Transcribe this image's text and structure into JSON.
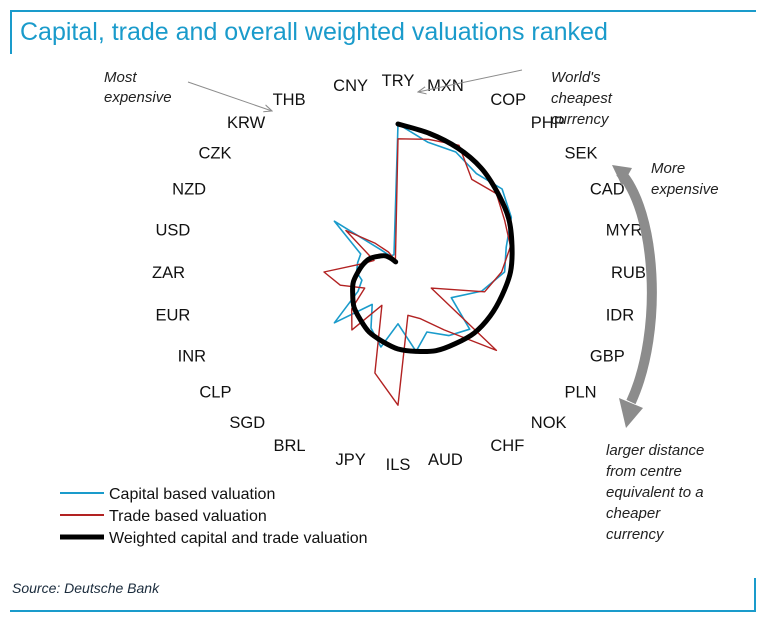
{
  "title": "Capital, trade and overall weighted valuations ranked",
  "source": "Source: Deutsche Bank",
  "colors": {
    "title": "#1a9bcb",
    "capital": "#1a9bcb",
    "trade": "#b22222",
    "weighted": "#000000",
    "arrow": "#8c8c8c"
  },
  "annotations": {
    "most_expensive": [
      "Most",
      "expensive"
    ],
    "worlds_cheapest": [
      "World's",
      "cheapest",
      "currency"
    ],
    "more_expensive": [
      "More",
      "expensive"
    ],
    "distance_note": [
      "larger distance",
      "from centre",
      "equivalent to a",
      "cheaper",
      "currency"
    ]
  },
  "chart_data": {
    "type": "radar",
    "order_note": "currencies ranked clockwise from TRY (cheapest) to CNY (most expensive)",
    "categories": [
      "TRY",
      "MXN",
      "COP",
      "PHP",
      "SEK",
      "CAD",
      "MYR",
      "RUB",
      "IDR",
      "GBP",
      "PLN",
      "NOK",
      "CHF",
      "AUD",
      "ILS",
      "JPY",
      "BRL",
      "SGD",
      "CLP",
      "INR",
      "EUR",
      "ZAR",
      "USD",
      "NZD",
      "CZK",
      "KRW",
      "THB",
      "CNY"
    ],
    "series": [
      {
        "name": "Capital based valuation",
        "values": [
          1.0,
          0.9,
          0.9,
          0.85,
          0.9,
          0.85,
          0.75,
          0.72,
          0.58,
          0.4,
          0.62,
          0.55,
          0.45,
          0.55,
          0.35,
          0.52,
          0.42,
          0.28,
          0.55,
          0.3,
          0.25,
          0.28,
          0.28,
          0.28,
          0.55,
          0.2,
          0.12,
          0.12
        ]
      },
      {
        "name": "Trade based valuation",
        "values": [
          0.9,
          0.92,
          0.95,
          0.8,
          0.85,
          0.8,
          0.78,
          0.7,
          0.6,
          0.25,
          0.85,
          0.5,
          0.35,
          0.3,
          0.9,
          0.7,
          0.25,
          0.5,
          0.4,
          0.25,
          0.4,
          0.5,
          0.25,
          0.18,
          0.45,
          0.25,
          0.15,
          0.08
        ]
      },
      {
        "name": "Weighted capital and trade valuation",
        "values": [
          1.0,
          0.96,
          0.93,
          0.9,
          0.86,
          0.83,
          0.79,
          0.76,
          0.72,
          0.69,
          0.66,
          0.62,
          0.59,
          0.55,
          0.52,
          0.48,
          0.45,
          0.41,
          0.38,
          0.34,
          0.31,
          0.27,
          0.24,
          0.21,
          0.17,
          0.14,
          0.1,
          0.07
        ]
      }
    ]
  }
}
